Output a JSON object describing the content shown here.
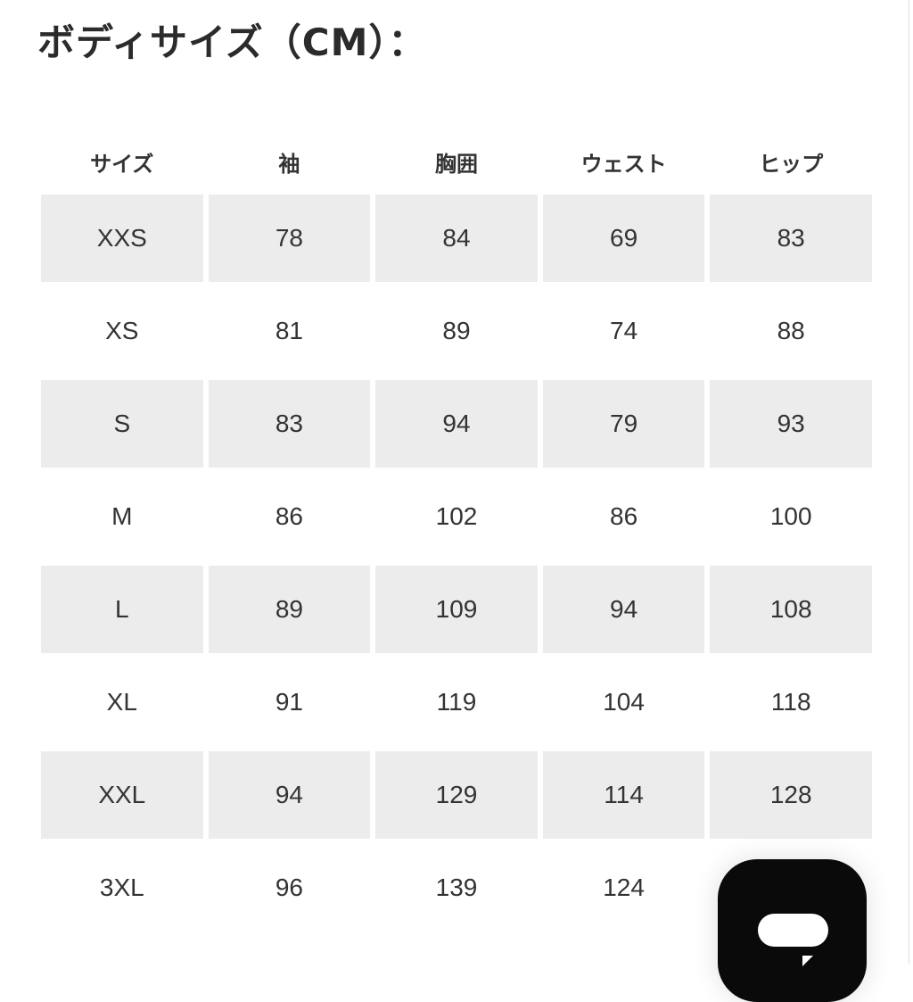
{
  "title": "ボディサイズ（CM）：",
  "table": {
    "headers": [
      "サイズ",
      "袖",
      "胸囲",
      "ウェスト",
      "ヒップ"
    ],
    "rows": [
      [
        "XXS",
        "78",
        "84",
        "69",
        "83"
      ],
      [
        "XS",
        "81",
        "89",
        "74",
        "88"
      ],
      [
        "S",
        "83",
        "94",
        "79",
        "93"
      ],
      [
        "M",
        "86",
        "102",
        "86",
        "100"
      ],
      [
        "L",
        "89",
        "109",
        "94",
        "108"
      ],
      [
        "XL",
        "91",
        "119",
        "104",
        "118"
      ],
      [
        "XXL",
        "94",
        "129",
        "114",
        "128"
      ],
      [
        "3XL",
        "96",
        "139",
        "124",
        ""
      ]
    ]
  },
  "chat_button": {
    "icon": "chat-bubble-icon",
    "color": "#0a0a0a"
  }
}
